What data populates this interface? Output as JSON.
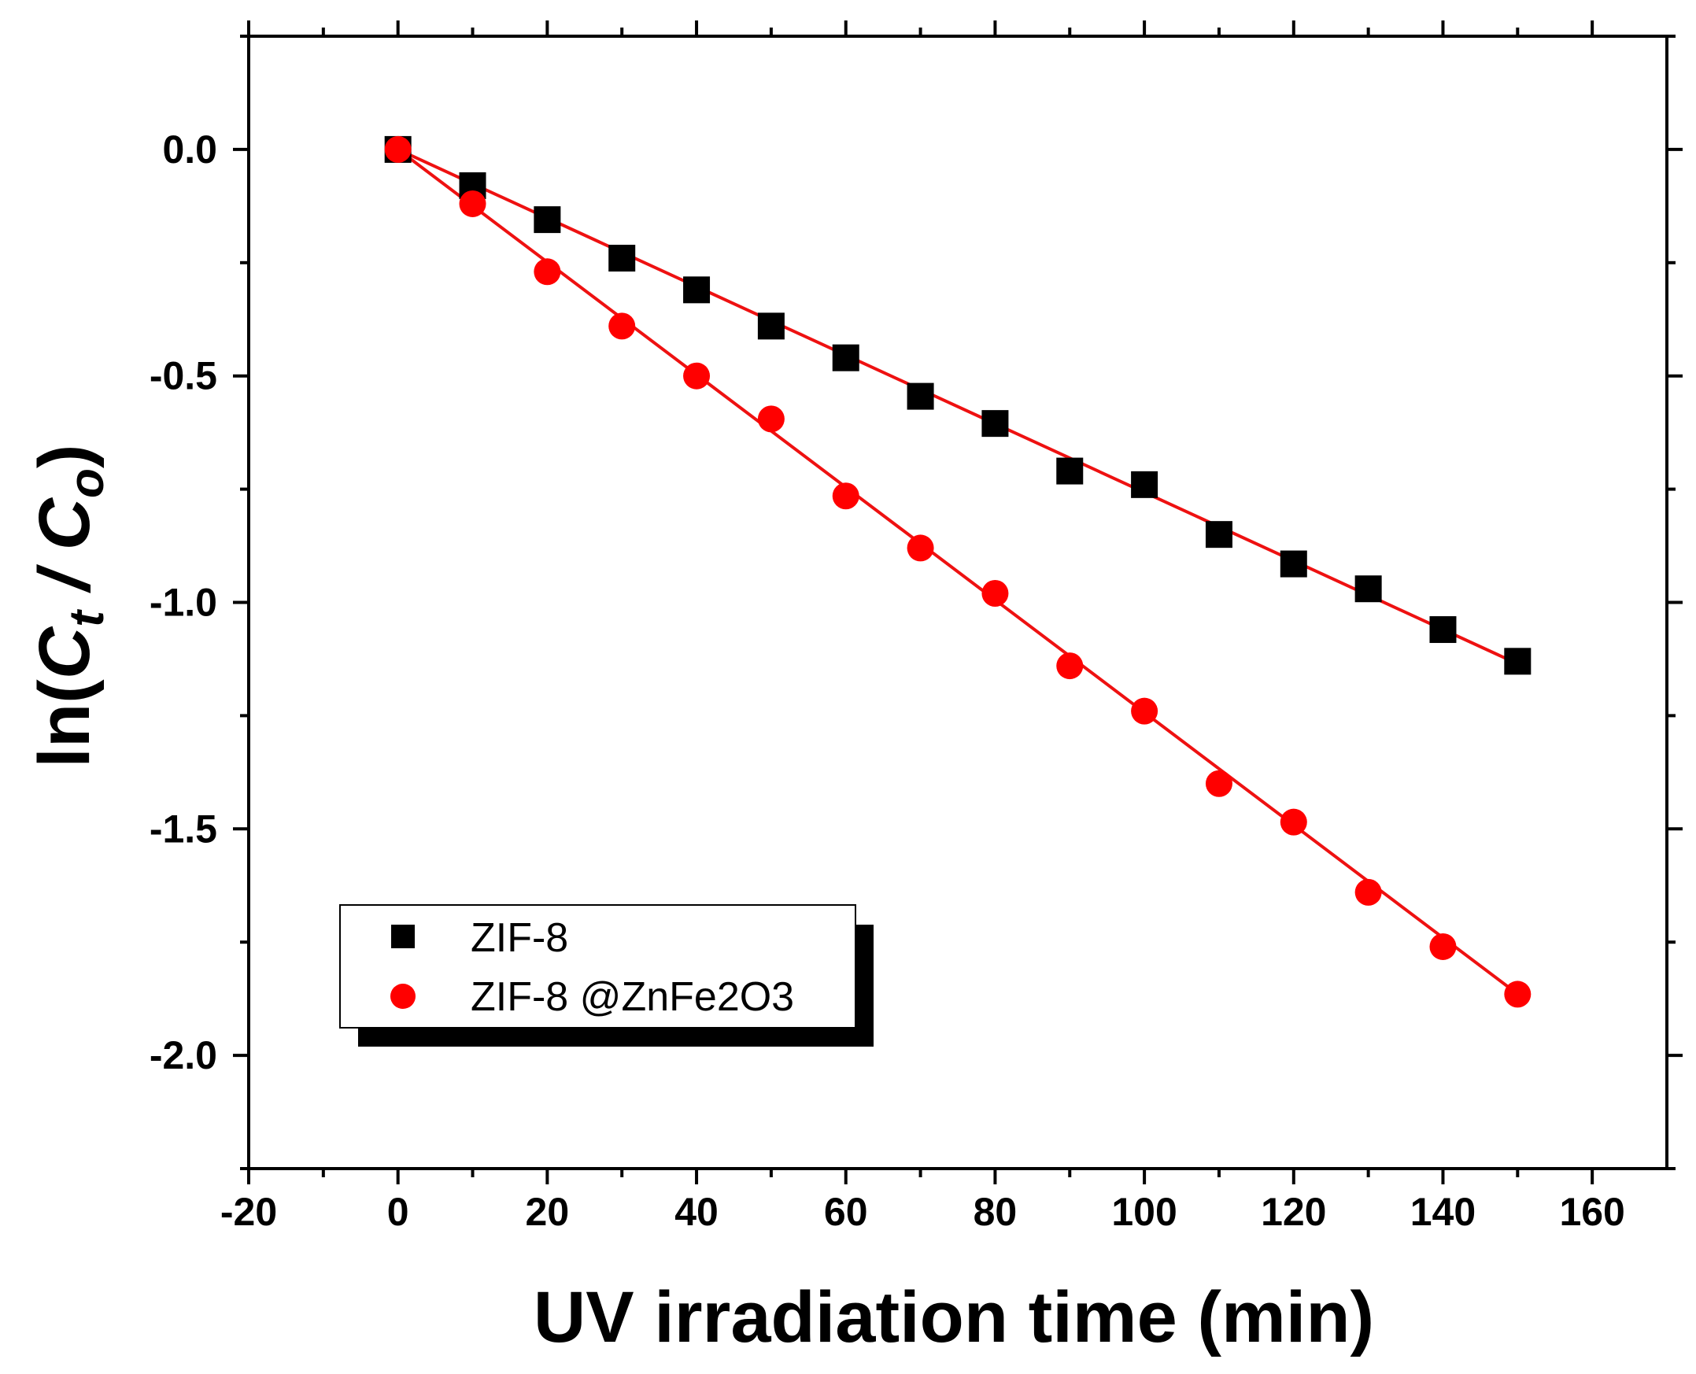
{
  "chart_data": {
    "type": "scatter",
    "xlabel": "UV irradiation time  (min)",
    "ylabel": {
      "prefix": "ln(",
      "c1": "C",
      "sub1": "t",
      "sep": " / ",
      "c2": "C",
      "sub2": "o",
      "suffix": ")"
    },
    "xlim": [
      -20,
      170
    ],
    "ylim": [
      -2.25,
      0.25
    ],
    "xticks": [
      -20,
      0,
      20,
      40,
      60,
      80,
      100,
      120,
      140,
      160
    ],
    "xtick_labels": [
      "-20",
      "0",
      "20",
      "40",
      "60",
      "80",
      "100",
      "120",
      "140",
      "160"
    ],
    "yticks": [
      0.0,
      -0.5,
      -1.0,
      -1.5,
      -2.0
    ],
    "ytick_labels": [
      "0.0",
      "-0.5",
      "-1.0",
      "-1.5",
      "-2.0"
    ],
    "grid": false,
    "legend_position": "bottom-left",
    "series": [
      {
        "name": "ZIF-8",
        "marker": "square",
        "color": "#000000",
        "fit_color": "#ee1111",
        "x": [
          0,
          10,
          20,
          30,
          40,
          50,
          60,
          70,
          80,
          90,
          100,
          110,
          120,
          130,
          140,
          150
        ],
        "y": [
          0.0,
          -0.08,
          -0.155,
          -0.24,
          -0.31,
          -0.39,
          -0.46,
          -0.545,
          -0.605,
          -0.71,
          -0.74,
          -0.85,
          -0.915,
          -0.97,
          -1.06,
          -1.13
        ],
        "fit": {
          "slope": -0.00757,
          "intercept": 0.0
        }
      },
      {
        "name": "ZIF-8 @ZnFe2O3",
        "marker": "circle",
        "color": "#ff0000",
        "fit_color": "#ee1111",
        "x": [
          0,
          10,
          20,
          30,
          40,
          50,
          60,
          70,
          80,
          90,
          100,
          110,
          120,
          130,
          140,
          150
        ],
        "y": [
          0.0,
          -0.12,
          -0.27,
          -0.39,
          -0.5,
          -0.595,
          -0.765,
          -0.88,
          -0.98,
          -1.14,
          -1.24,
          -1.4,
          -1.485,
          -1.64,
          -1.76,
          -1.865
        ],
        "fit": {
          "slope": -0.01243,
          "intercept": 0.0
        }
      }
    ]
  }
}
